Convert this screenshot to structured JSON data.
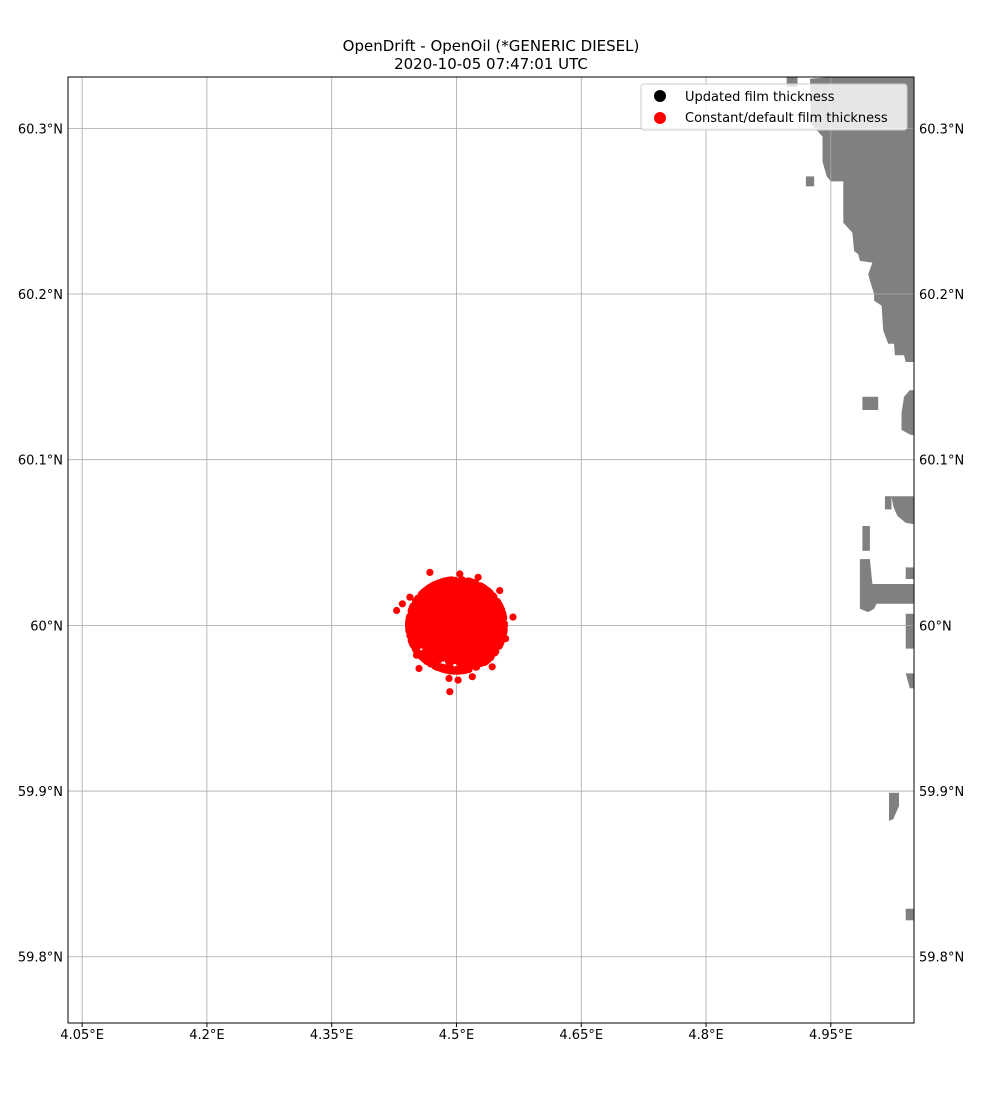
{
  "chart_data": {
    "type": "scatter",
    "title": "OpenDrift - OpenOil (*GENERIC DIESEL)",
    "subtitle": "2020-10-05 07:47:01 UTC",
    "xlabel": "",
    "ylabel": "",
    "xlim": [
      4.033,
      5.05
    ],
    "ylim": [
      59.76,
      60.331
    ],
    "grid": true,
    "x_ticks": [
      4.05,
      4.2,
      4.35,
      4.5,
      4.65,
      4.8,
      4.95
    ],
    "x_tick_labels": [
      "4.05°E",
      "4.2°E",
      "4.35°E",
      "4.5°E",
      "4.65°E",
      "4.8°E",
      "4.95°E"
    ],
    "y_ticks": [
      59.8,
      59.9,
      60.0,
      60.1,
      60.2,
      60.3
    ],
    "y_tick_labels": [
      "59.8°N",
      "59.9°N",
      "60°N",
      "60.1°N",
      "60.2°N",
      "60.3°N"
    ],
    "legend": {
      "placement": "top-right",
      "entries": [
        {
          "label": "Updated film thickness",
          "color": "#000000"
        },
        {
          "label": "Constant/default film thickness",
          "color": "#ff0000"
        }
      ]
    },
    "series": [
      {
        "name": "Constant/default film thickness",
        "color": "#ff0000",
        "center": [
          4.5,
          60.0
        ],
        "spread_lon": 0.025,
        "spread_lat": 0.012,
        "count": 2500,
        "outliers": [
          [
            4.428,
            60.009
          ],
          [
            4.435,
            60.013
          ],
          [
            4.468,
            60.032
          ],
          [
            4.568,
            60.005
          ],
          [
            4.492,
            59.96
          ],
          [
            4.491,
            59.968
          ],
          [
            4.519,
            59.969
          ],
          [
            4.543,
            59.975
          ],
          [
            4.455,
            59.974
          ],
          [
            4.504,
            60.031
          ],
          [
            4.526,
            60.029
          ],
          [
            4.552,
            60.021
          ],
          [
            4.444,
            60.017
          ],
          [
            4.559,
            59.992
          ],
          [
            4.452,
            59.982
          ],
          [
            4.502,
            59.967
          ]
        ]
      },
      {
        "name": "Updated film thickness",
        "color": "#000000",
        "count": 0
      }
    ],
    "land_color": "#808080",
    "land_polygons": [
      [
        [
          4.95,
          60.331
        ],
        [
          5.05,
          60.331
        ],
        [
          5.05,
          60.159
        ],
        [
          5.04,
          60.159
        ],
        [
          5.038,
          60.163
        ],
        [
          5.027,
          60.163
        ],
        [
          5.026,
          60.17
        ],
        [
          5.019,
          60.17
        ],
        [
          5.013,
          60.178
        ],
        [
          5.011,
          60.193
        ],
        [
          5.002,
          60.196
        ],
        [
          5.002,
          60.2
        ],
        [
          4.997,
          60.208
        ],
        [
          4.995,
          60.212
        ],
        [
          5.0,
          60.219
        ],
        [
          4.985,
          60.22
        ],
        [
          4.983,
          60.224
        ],
        [
          4.978,
          60.226
        ],
        [
          4.976,
          60.237
        ],
        [
          4.965,
          60.243
        ],
        [
          4.965,
          60.268
        ],
        [
          4.95,
          60.268
        ],
        [
          4.945,
          60.271
        ],
        [
          4.94,
          60.28
        ],
        [
          4.94,
          60.295
        ],
        [
          4.926,
          60.303
        ],
        [
          4.925,
          60.33
        ]
      ],
      [
        [
          5.045,
          60.142
        ],
        [
          5.05,
          60.142
        ],
        [
          5.05,
          60.115
        ],
        [
          5.046,
          60.115
        ],
        [
          5.035,
          60.118
        ],
        [
          5.035,
          60.128
        ],
        [
          5.038,
          60.138
        ]
      ],
      [
        [
          4.988,
          60.138
        ],
        [
          5.007,
          60.138
        ],
        [
          5.007,
          60.13
        ],
        [
          4.988,
          60.13
        ]
      ],
      [
        [
          5.033,
          60.078
        ],
        [
          5.05,
          60.078
        ],
        [
          5.05,
          60.061
        ],
        [
          5.04,
          60.062
        ],
        [
          5.03,
          60.066
        ],
        [
          5.025,
          60.072
        ],
        [
          5.023,
          60.078
        ]
      ],
      [
        [
          5.015,
          60.078
        ],
        [
          5.023,
          60.078
        ],
        [
          5.023,
          60.07
        ],
        [
          5.015,
          60.07
        ]
      ],
      [
        [
          4.988,
          60.06
        ],
        [
          4.997,
          60.06
        ],
        [
          4.997,
          60.045
        ],
        [
          4.988,
          60.045
        ]
      ],
      [
        [
          4.985,
          60.04
        ],
        [
          4.997,
          60.04
        ],
        [
          5.0,
          60.025
        ],
        [
          5.05,
          60.025
        ],
        [
          5.05,
          60.013
        ],
        [
          5.005,
          60.013
        ],
        [
          5.002,
          60.01
        ],
        [
          4.995,
          60.008
        ],
        [
          4.985,
          60.01
        ]
      ],
      [
        [
          5.04,
          60.035
        ],
        [
          5.05,
          60.035
        ],
        [
          5.05,
          60.028
        ],
        [
          5.04,
          60.028
        ]
      ],
      [
        [
          5.04,
          60.007
        ],
        [
          5.05,
          60.007
        ],
        [
          5.05,
          59.986
        ],
        [
          5.04,
          59.986
        ]
      ],
      [
        [
          5.04,
          59.971
        ],
        [
          5.05,
          59.971
        ],
        [
          5.05,
          59.962
        ],
        [
          5.045,
          59.962
        ]
      ],
      [
        [
          5.02,
          59.899
        ],
        [
          5.032,
          59.899
        ],
        [
          5.032,
          59.891
        ],
        [
          5.025,
          59.883
        ],
        [
          5.02,
          59.882
        ]
      ],
      [
        [
          5.04,
          59.829
        ],
        [
          5.05,
          59.829
        ],
        [
          5.05,
          59.822
        ],
        [
          5.04,
          59.822
        ]
      ],
      [
        [
          4.897,
          60.331
        ],
        [
          4.91,
          60.331
        ],
        [
          4.91,
          60.325
        ],
        [
          4.897,
          60.325
        ]
      ],
      [
        [
          4.92,
          60.271
        ],
        [
          4.93,
          60.271
        ],
        [
          4.93,
          60.265
        ],
        [
          4.92,
          60.265
        ]
      ]
    ]
  }
}
